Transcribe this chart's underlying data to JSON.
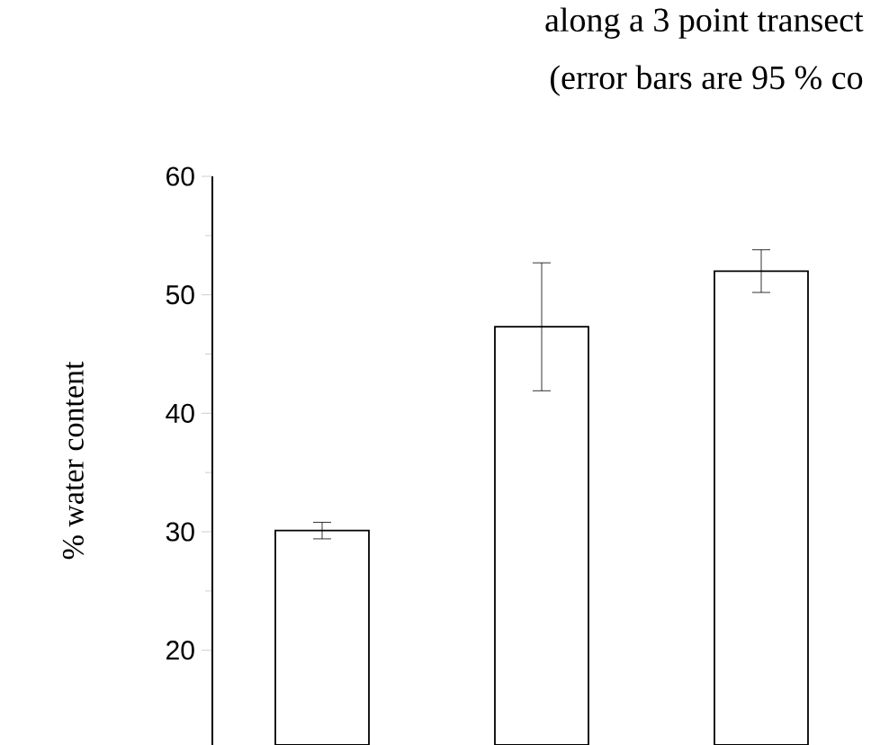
{
  "chart_data": {
    "type": "bar",
    "title": "along a 3 point transect",
    "subtitle": "(error bars are 95 % co",
    "ylabel": "% water content",
    "categories": [
      null,
      null,
      null
    ],
    "values": [
      30.1,
      47.3,
      52.0
    ],
    "errors": [
      0.7,
      5.4,
      1.8
    ],
    "color": "#ffffff",
    "ylim": [
      12,
      60
    ],
    "yticks": [
      20,
      30,
      40,
      50,
      60
    ],
    "tick_labels": "y"
  }
}
